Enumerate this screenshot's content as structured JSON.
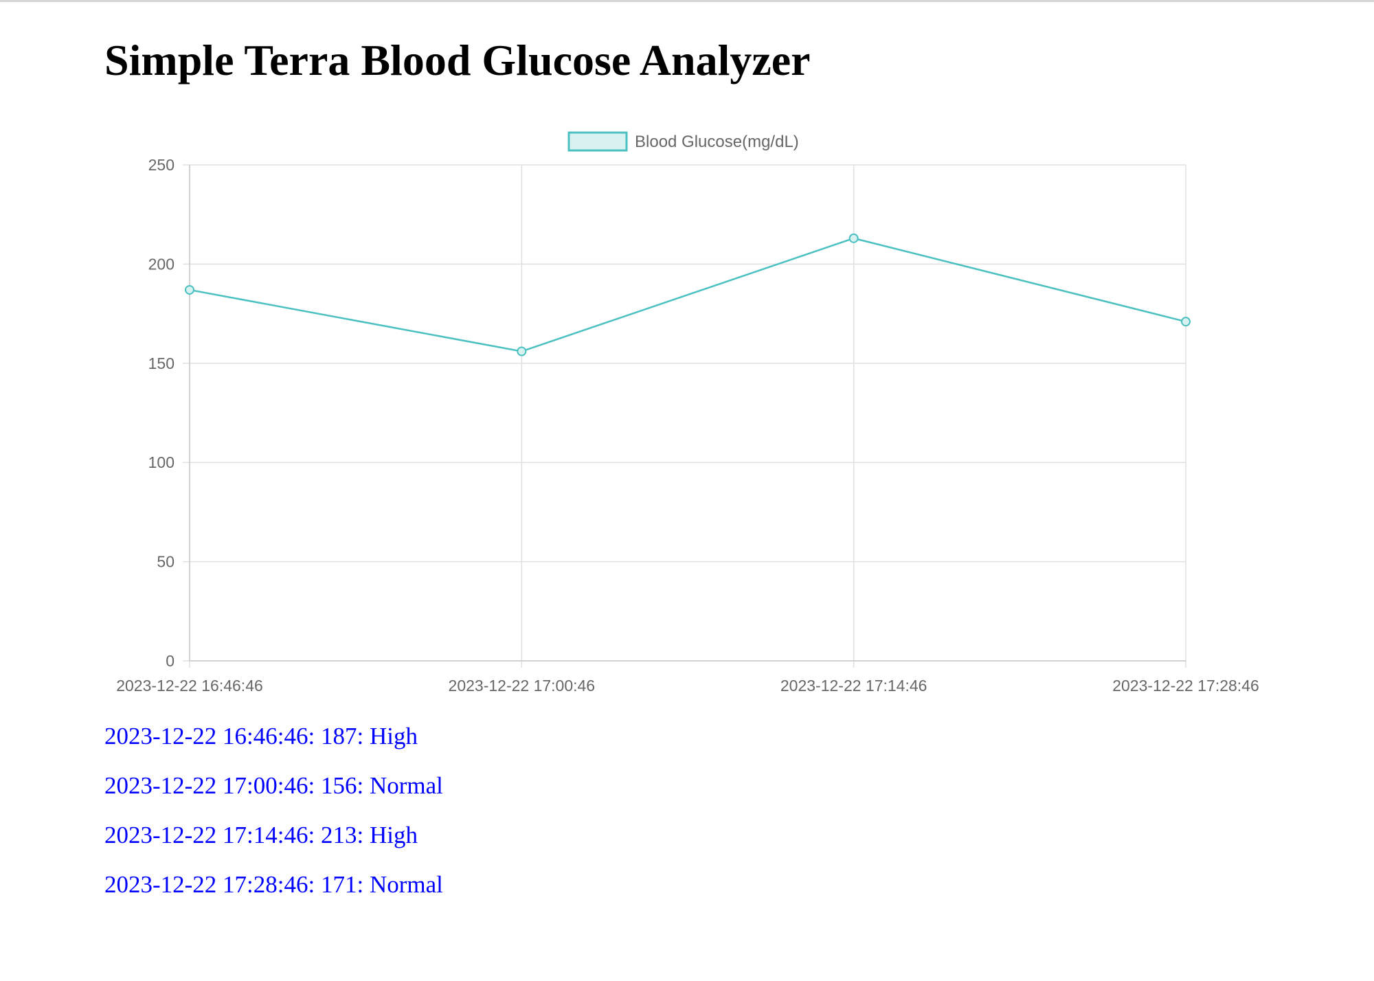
{
  "page": {
    "title": "Simple Terra Blood Glucose Analyzer"
  },
  "chart_data": {
    "type": "line",
    "title": "",
    "xlabel": "",
    "ylabel": "",
    "x": [
      "2023-12-22 16:46:46",
      "2023-12-22 17:00:46",
      "2023-12-22 17:14:46",
      "2023-12-22 17:28:46"
    ],
    "series": [
      {
        "name": "Blood Glucose(mg/dL)",
        "values": [
          187,
          156,
          213,
          171
        ],
        "color": "#4bc0c0",
        "fill": "#d8f2f2"
      }
    ],
    "ylim": [
      0,
      250
    ],
    "yticks": [
      0,
      50,
      100,
      150,
      200,
      250
    ],
    "grid": true,
    "legend": "top-center"
  },
  "readings": [
    {
      "time": "2023-12-22 16:46:46",
      "value": "187",
      "status": "High"
    },
    {
      "time": "2023-12-22 17:00:46",
      "value": "156",
      "status": "Normal"
    },
    {
      "time": "2023-12-22 17:14:46",
      "value": "213",
      "status": "High"
    },
    {
      "time": "2023-12-22 17:28:46",
      "value": "171",
      "status": "Normal"
    }
  ],
  "colors": {
    "reading_text": "#0000ff",
    "grid": "#e0e0e0",
    "axis_text": "#666666"
  }
}
